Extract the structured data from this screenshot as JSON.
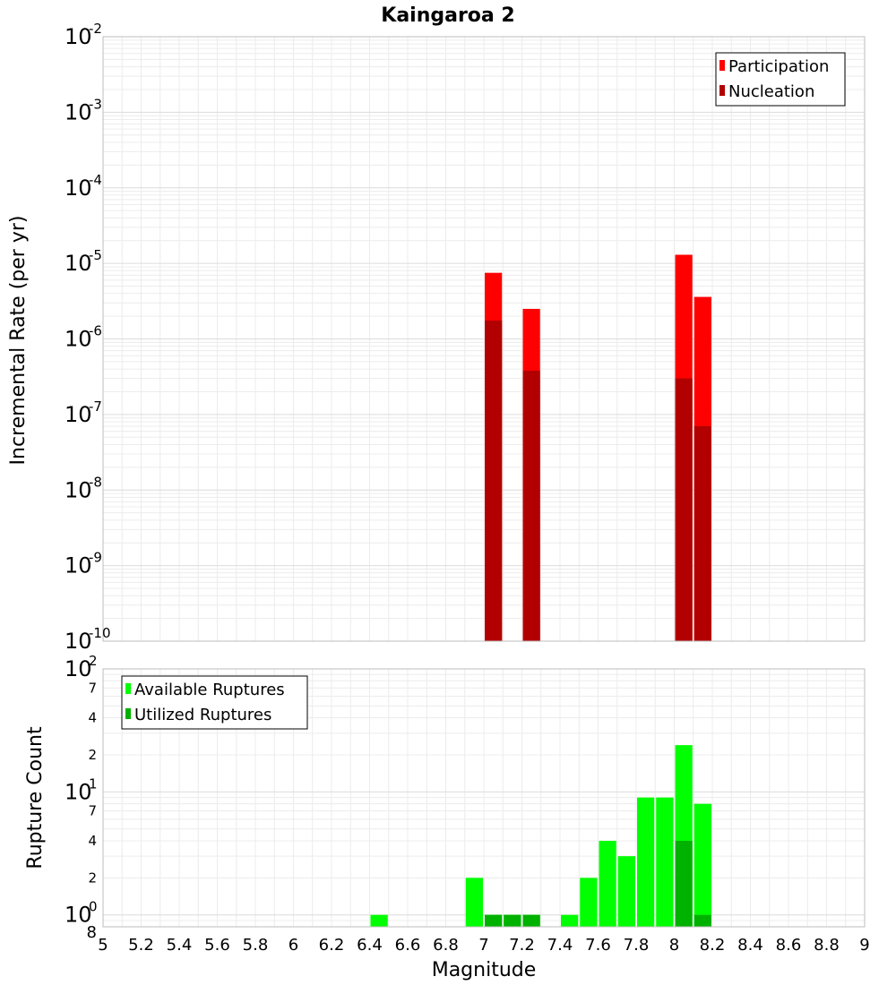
{
  "chart_data": [
    {
      "type": "bar",
      "title": "Kaingaroa 2",
      "xlabel": "Magnitude",
      "ylabel": "Incremental Rate (per yr)",
      "yscale": "log",
      "xlim": [
        5,
        9
      ],
      "ylim": [
        1e-10,
        0.01
      ],
      "grid": true,
      "legend_position": "top-right",
      "bar_width": 0.1,
      "x_ticks": [
        "5",
        "5.2",
        "5.4",
        "5.6",
        "5.8",
        "6",
        "6.2",
        "6.4",
        "6.6",
        "6.8",
        "7",
        "7.2",
        "7.4",
        "7.6",
        "7.8",
        "8",
        "8.2",
        "8.4",
        "8.6",
        "8.8",
        "9"
      ],
      "y_ticks": [
        {
          "base": "10",
          "exp": "-2"
        },
        {
          "base": "10",
          "exp": "-3"
        },
        {
          "base": "10",
          "exp": "-4"
        },
        {
          "base": "10",
          "exp": "-5"
        },
        {
          "base": "10",
          "exp": "-6"
        },
        {
          "base": "10",
          "exp": "-7"
        },
        {
          "base": "10",
          "exp": "-8"
        },
        {
          "base": "10",
          "exp": "-9"
        },
        {
          "base": "10",
          "exp": "-10"
        }
      ],
      "series": [
        {
          "name": "Participation",
          "color": "#ff0000",
          "x": [
            7.05,
            7.25,
            8.05,
            8.15
          ],
          "values": [
            7.5e-06,
            2.5e-06,
            1.3e-05,
            3.6e-06
          ]
        },
        {
          "name": "Nucleation",
          "color": "#b20000",
          "x": [
            7.05,
            7.25,
            8.05,
            8.15
          ],
          "values": [
            1.75e-06,
            3.8e-07,
            3e-07,
            7e-08
          ]
        }
      ]
    },
    {
      "type": "bar",
      "xlabel": "Magnitude",
      "ylabel": "Rupture Count",
      "yscale": "log",
      "xlim": [
        5,
        9
      ],
      "ylim": [
        0.8,
        100
      ],
      "grid": true,
      "legend_position": "top-left",
      "bar_width": 0.1,
      "x_ticks": [
        "5",
        "5.2",
        "5.4",
        "5.6",
        "5.8",
        "6",
        "6.2",
        "6.4",
        "6.6",
        "6.8",
        "7",
        "7.2",
        "7.4",
        "7.6",
        "7.8",
        "8",
        "8.2",
        "8.4",
        "8.6",
        "8.8",
        "9"
      ],
      "y_major_ticks": [
        {
          "base": "10",
          "exp": "2"
        },
        {
          "base": "10",
          "exp": "1"
        },
        {
          "base": "10",
          "exp": "0"
        }
      ],
      "y_minor_ticks": [
        "7",
        "4",
        "2",
        "7",
        "4",
        "2",
        "8"
      ],
      "series": [
        {
          "name": "Available Ruptures",
          "color": "#00ff00",
          "x": [
            6.45,
            6.95,
            7.05,
            7.15,
            7.25,
            7.45,
            7.55,
            7.65,
            7.75,
            7.85,
            7.95,
            8.05,
            8.15
          ],
          "values": [
            1,
            2,
            1,
            1,
            1,
            1,
            2,
            4,
            3,
            9,
            9,
            24,
            8
          ]
        },
        {
          "name": "Utilized Ruptures",
          "color": "#00b200",
          "x": [
            7.05,
            7.15,
            7.25,
            8.05,
            8.15
          ],
          "values": [
            1,
            1,
            1,
            4,
            1
          ]
        }
      ]
    }
  ]
}
